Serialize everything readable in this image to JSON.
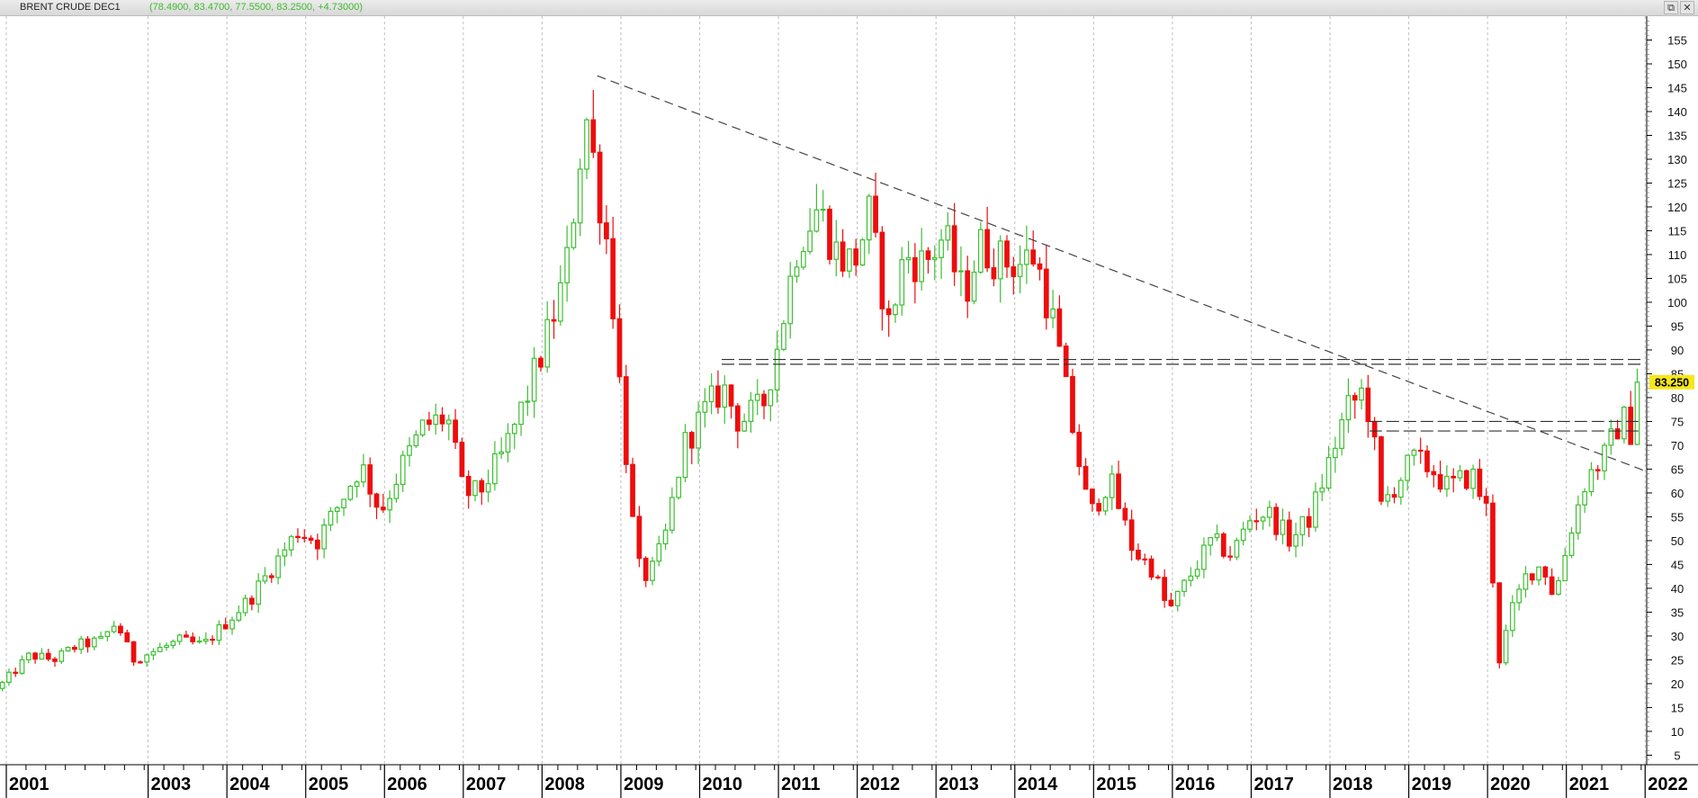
{
  "window": {
    "title": "BRENT CRUDE DEC1",
    "ohlc_text": "(78.4900, 83.4700, 77.5500, 83.2500, +4.73000)",
    "buttons": [
      {
        "name": "restore-icon",
        "label": "⧉"
      },
      {
        "name": "close-icon",
        "label": "✕"
      }
    ]
  },
  "chart_data": {
    "type": "candlestick",
    "title": "BRENT CRUDE DEC1",
    "ohlc_summary": {
      "open": 78.49,
      "high": 83.47,
      "low": 77.55,
      "close": 83.25,
      "change": 4.73
    },
    "last_price_label": "83.250",
    "y_ticks": [
      5,
      10,
      15,
      20,
      25,
      30,
      35,
      40,
      45,
      50,
      55,
      60,
      65,
      70,
      75,
      80,
      85,
      90,
      95,
      100,
      105,
      110,
      115,
      120,
      125,
      130,
      135,
      140,
      145,
      150,
      155
    ],
    "ylim": [
      3,
      160
    ],
    "x_labels": [
      {
        "label": "2001",
        "t": 2001.0
      },
      {
        "label": "2003",
        "t": 2002.8
      },
      {
        "label": "2004",
        "t": 2003.8
      },
      {
        "label": "2005",
        "t": 2004.8
      },
      {
        "label": "2006",
        "t": 2005.8
      },
      {
        "label": "2007",
        "t": 2006.8
      },
      {
        "label": "2008",
        "t": 2007.8
      },
      {
        "label": "2009",
        "t": 2008.8
      },
      {
        "label": "2010",
        "t": 2009.8
      },
      {
        "label": "2011",
        "t": 2010.8
      },
      {
        "label": "2012",
        "t": 2011.8
      },
      {
        "label": "2013",
        "t": 2012.8
      },
      {
        "label": "2014",
        "t": 2013.8
      },
      {
        "label": "2015",
        "t": 2014.8
      },
      {
        "label": "2016",
        "t": 2015.8
      },
      {
        "label": "2017",
        "t": 2016.8
      },
      {
        "label": "2018",
        "t": 2017.8
      },
      {
        "label": "2019",
        "t": 2018.8
      },
      {
        "label": "2020",
        "t": 2019.8
      },
      {
        "label": "2021",
        "t": 2020.8
      },
      {
        "label": "2022",
        "t": 2021.8
      }
    ],
    "xlim": [
      2000.92,
      2021.82
    ],
    "close_path": [
      [
        2000.95,
        20
      ],
      [
        2001.3,
        26
      ],
      [
        2001.6,
        25
      ],
      [
        2001.9,
        28
      ],
      [
        2002.2,
        29
      ],
      [
        2002.4,
        33
      ],
      [
        2002.6,
        25
      ],
      [
        2002.9,
        27
      ],
      [
        2003.2,
        29
      ],
      [
        2003.5,
        28
      ],
      [
        2003.8,
        33
      ],
      [
        2004.1,
        38
      ],
      [
        2004.4,
        45
      ],
      [
        2004.7,
        52
      ],
      [
        2004.95,
        50
      ],
      [
        2005.2,
        57
      ],
      [
        2005.5,
        66
      ],
      [
        2005.75,
        56
      ],
      [
        2006.0,
        65
      ],
      [
        2006.3,
        74
      ],
      [
        2006.6,
        76
      ],
      [
        2006.8,
        60
      ],
      [
        2007.0,
        60
      ],
      [
        2007.3,
        68
      ],
      [
        2007.6,
        80
      ],
      [
        2007.85,
        92
      ],
      [
        2008.1,
        106
      ],
      [
        2008.35,
        140
      ],
      [
        2008.5,
        125
      ],
      [
        2008.65,
        110
      ],
      [
        2008.8,
        80
      ],
      [
        2009.0,
        45
      ],
      [
        2009.15,
        42
      ],
      [
        2009.35,
        50
      ],
      [
        2009.6,
        70
      ],
      [
        2009.9,
        78
      ],
      [
        2010.1,
        82
      ],
      [
        2010.3,
        75
      ],
      [
        2010.6,
        78
      ],
      [
        2010.8,
        92
      ],
      [
        2011.05,
        113
      ],
      [
        2011.3,
        120
      ],
      [
        2011.55,
        110
      ],
      [
        2011.75,
        108
      ],
      [
        2011.95,
        118
      ],
      [
        2012.2,
        95
      ],
      [
        2012.4,
        110
      ],
      [
        2012.65,
        108
      ],
      [
        2012.9,
        114
      ],
      [
        2013.15,
        101
      ],
      [
        2013.35,
        112
      ],
      [
        2013.6,
        109
      ],
      [
        2013.85,
        108
      ],
      [
        2014.05,
        110
      ],
      [
        2014.3,
        95
      ],
      [
        2014.55,
        72
      ],
      [
        2014.75,
        55
      ],
      [
        2015.0,
        63
      ],
      [
        2015.3,
        48
      ],
      [
        2015.55,
        44
      ],
      [
        2015.75,
        35
      ],
      [
        2016.0,
        42
      ],
      [
        2016.3,
        50
      ],
      [
        2016.55,
        47
      ],
      [
        2016.8,
        55
      ],
      [
        2017.0,
        56
      ],
      [
        2017.3,
        50
      ],
      [
        2017.55,
        55
      ],
      [
        2017.8,
        67
      ],
      [
        2018.0,
        77
      ],
      [
        2018.2,
        81
      ],
      [
        2018.32,
        76
      ],
      [
        2018.45,
        57
      ],
      [
        2018.6,
        61
      ],
      [
        2018.85,
        67
      ],
      [
        2019.1,
        65
      ],
      [
        2019.3,
        61
      ],
      [
        2019.6,
        64
      ],
      [
        2019.8,
        56
      ],
      [
        2019.95,
        25
      ],
      [
        2020.1,
        35
      ],
      [
        2020.3,
        43
      ],
      [
        2020.5,
        45
      ],
      [
        2020.65,
        38
      ],
      [
        2020.85,
        52
      ],
      [
        2021.05,
        63
      ],
      [
        2021.3,
        68
      ],
      [
        2021.5,
        76
      ],
      [
        2021.62,
        73
      ],
      [
        2021.72,
        79
      ],
      [
        2021.78,
        83.25
      ]
    ],
    "annotations": {
      "trendline": {
        "from": [
          2008.5,
          147.5
        ],
        "to": [
          2021.82,
          64.5
        ]
      },
      "support_lines": [
        {
          "from": [
            2010.08,
            88
          ],
          "to": [
            2021.9,
            88
          ]
        },
        {
          "from": [
            2010.08,
            87
          ],
          "to": [
            2021.9,
            87
          ]
        },
        {
          "from": [
            2018.3,
            75
          ],
          "to": [
            2021.9,
            75
          ]
        },
        {
          "from": [
            2018.3,
            73
          ],
          "to": [
            2021.9,
            73
          ]
        }
      ]
    },
    "colors": {
      "up": "#3cc031",
      "down": "#ee0d0d",
      "grid": "#bfbfbf",
      "price_tag": "#f6e61a"
    },
    "grid": "vertical dashed"
  }
}
